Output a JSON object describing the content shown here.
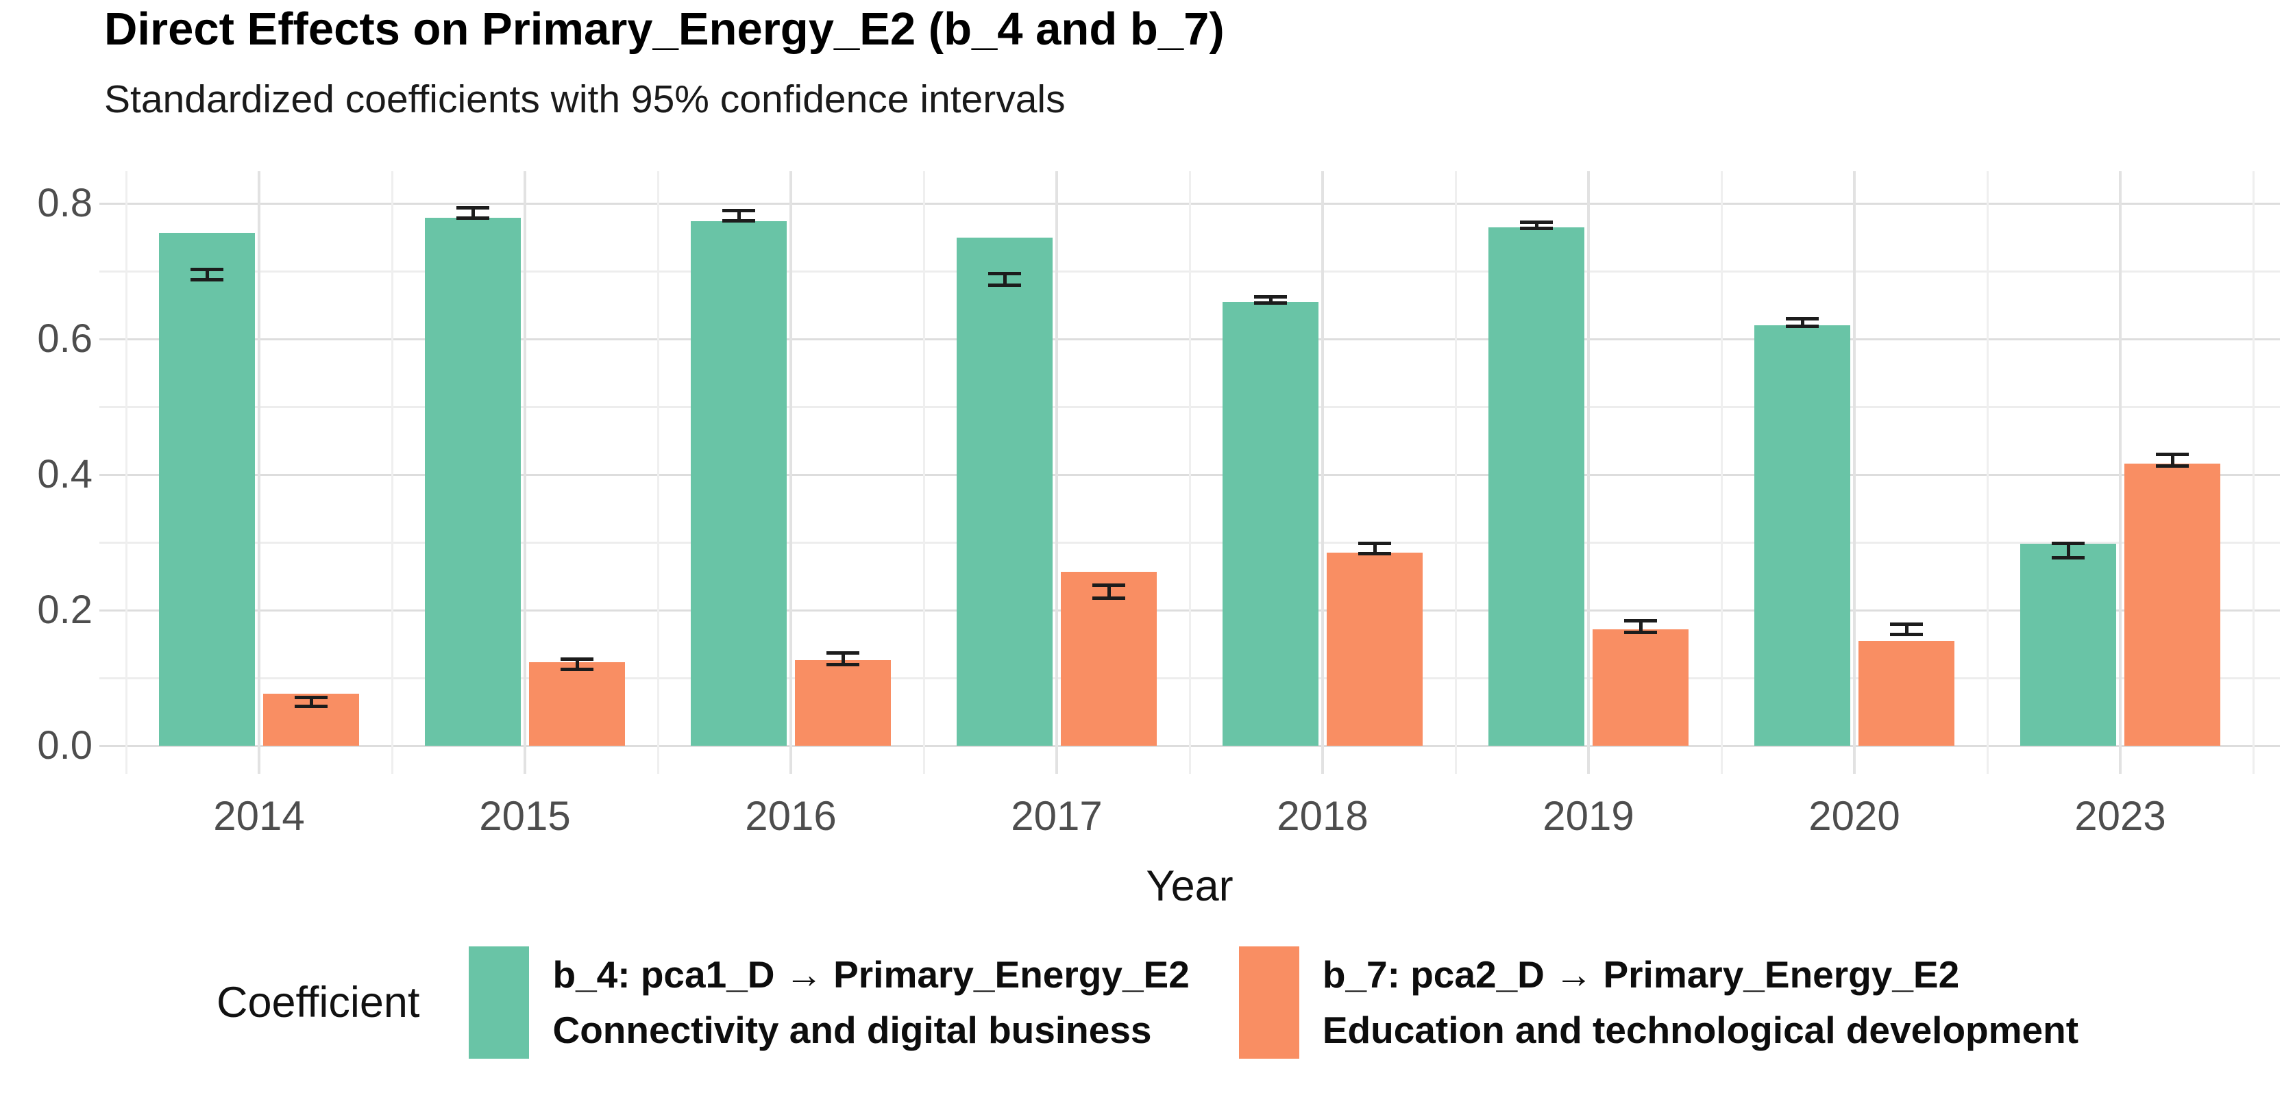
{
  "chart_data": {
    "type": "bar",
    "title": "Direct Effects on Primary_Energy_E2 (b_4 and b_7)",
    "subtitle": "Standardized coefficients with 95% confidence intervals",
    "xlabel": "Year",
    "ylabel": "",
    "categories": [
      "2014",
      "2015",
      "2016",
      "2017",
      "2018",
      "2019",
      "2020",
      "2023"
    ],
    "ylim": [
      0.0,
      0.8
    ],
    "yticks": [
      0.0,
      0.2,
      0.4,
      0.6,
      0.8
    ],
    "ytick_labels": [
      "0.0",
      "0.2",
      "0.4",
      "0.6",
      "0.8"
    ],
    "grid": "major and minor gridlines, light gray on white",
    "legend_position": "bottom",
    "legend_title": "Coefficient",
    "errorbar_color": "#1c1c1c",
    "series": [
      {
        "name": "b_4: pca1_D → Primary_Energy_E2",
        "description": "Connectivity and digital business",
        "color": "#69C4A6",
        "values": [
          0.757,
          0.779,
          0.774,
          0.75,
          0.655,
          0.765,
          0.62,
          0.298
        ],
        "ci_low": [
          0.686,
          0.777,
          0.773,
          0.678,
          0.652,
          0.762,
          0.617,
          0.276
        ],
        "ci_high": [
          0.704,
          0.795,
          0.791,
          0.698,
          0.664,
          0.774,
          0.631,
          0.3
        ]
      },
      {
        "name": "b_7: pca2_D → Primary_Energy_E2",
        "description": "Education and technological development",
        "color": "#F98E63",
        "values": [
          0.077,
          0.123,
          0.126,
          0.257,
          0.285,
          0.172,
          0.155,
          0.416
        ],
        "ci_low": [
          0.057,
          0.111,
          0.118,
          0.216,
          0.282,
          0.166,
          0.163,
          0.411
        ],
        "ci_high": [
          0.073,
          0.129,
          0.138,
          0.238,
          0.3,
          0.186,
          0.181,
          0.431
        ]
      }
    ]
  }
}
